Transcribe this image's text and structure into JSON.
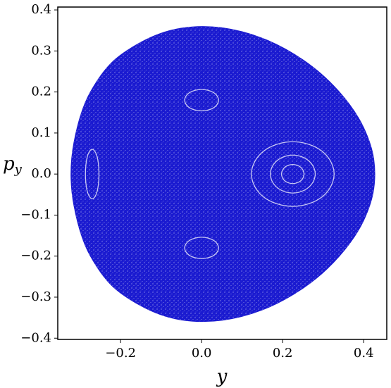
{
  "chart_data": {
    "type": "scatter",
    "xlabel": "y",
    "ylabel": "p",
    "ylabel_sub": "y",
    "xlim": [
      -0.355,
      0.457
    ],
    "ylim": [
      -0.403,
      0.407
    ],
    "xticks": [
      {
        "value": -0.2,
        "label": "−0.2"
      },
      {
        "value": 0,
        "label": "0.0"
      },
      0.2,
      0.4
    ],
    "yticks": [
      {
        "value": -0.4,
        "label": "−0.4"
      },
      {
        "value": -0.3,
        "label": "−0.3"
      },
      {
        "value": -0.2,
        "label": "−0.2"
      },
      {
        "value": -0.1,
        "label": "−0.1"
      },
      {
        "value": 0,
        "label": "0.0"
      },
      0.1,
      0.2,
      0.3,
      0.4
    ],
    "grid": false,
    "series": [
      {
        "color": "#1a1ad0",
        "x": [
          -0.33,
          -0.3,
          -0.25,
          -0.2,
          -0.1,
          0,
          0.1,
          0.2,
          0.3,
          0.38,
          0.42,
          0.43,
          0.42,
          0.38,
          0.3,
          0.2,
          0.1,
          0,
          -0.1,
          -0.2,
          -0.25,
          -0.3
        ],
        "values": [
          0,
          0.155,
          0.243,
          0.294,
          0.348,
          0.363,
          0.35,
          0.312,
          0.245,
          0.155,
          0.071,
          0,
          -0.071,
          -0.155,
          -0.245,
          -0.312,
          -0.35,
          -0.363,
          -0.348,
          -0.294,
          -0.243,
          -0.155
        ]
      },
      {
        "color": "#ffffff",
        "x": [
          0.335,
          0.303,
          0.225,
          0.147,
          0.115,
          0.147,
          0.225,
          0.303
        ],
        "values": [
          0,
          0.06,
          0.085,
          0.06,
          0,
          -0.06,
          -0.085,
          -0.06
        ]
      },
      {
        "color": "#ffffff",
        "x": [
          0.285,
          0.267,
          0.225,
          0.183,
          0.165,
          0.183,
          0.225,
          0.267
        ],
        "values": [
          0,
          0.035,
          0.05,
          0.035,
          0,
          -0.035,
          -0.05,
          -0.035
        ]
      },
      {
        "color": "#ffffff",
        "x": [
          0.255,
          0.246,
          0.225,
          0.204,
          0.195,
          0.204,
          0.225,
          0.246
        ],
        "values": [
          0,
          0.018,
          0.025,
          0.018,
          0,
          -0.018,
          -0.025,
          -0.018
        ]
      },
      {
        "color": "#ffffff",
        "x": [
          0.045,
          0.032,
          0,
          -0.032,
          -0.045,
          -0.032,
          0,
          0.032
        ],
        "values": [
          0.18,
          0.2,
          0.208,
          0.2,
          0.18,
          0.16,
          0.152,
          0.16
        ]
      },
      {
        "color": "#ffffff",
        "x": [
          0.045,
          0.032,
          0,
          -0.032,
          -0.045,
          -0.032,
          0,
          0.032
        ],
        "values": [
          -0.18,
          -0.16,
          -0.152,
          -0.16,
          -0.18,
          -0.2,
          -0.208,
          -0.2
        ]
      },
      {
        "color": "#ffffff",
        "x": [
          -0.252,
          -0.257,
          -0.27,
          -0.283,
          -0.288,
          -0.283,
          -0.27,
          -0.257
        ],
        "values": [
          0,
          0.046,
          0.065,
          0.046,
          0,
          -0.046,
          -0.065,
          -0.046
        ]
      }
    ]
  }
}
